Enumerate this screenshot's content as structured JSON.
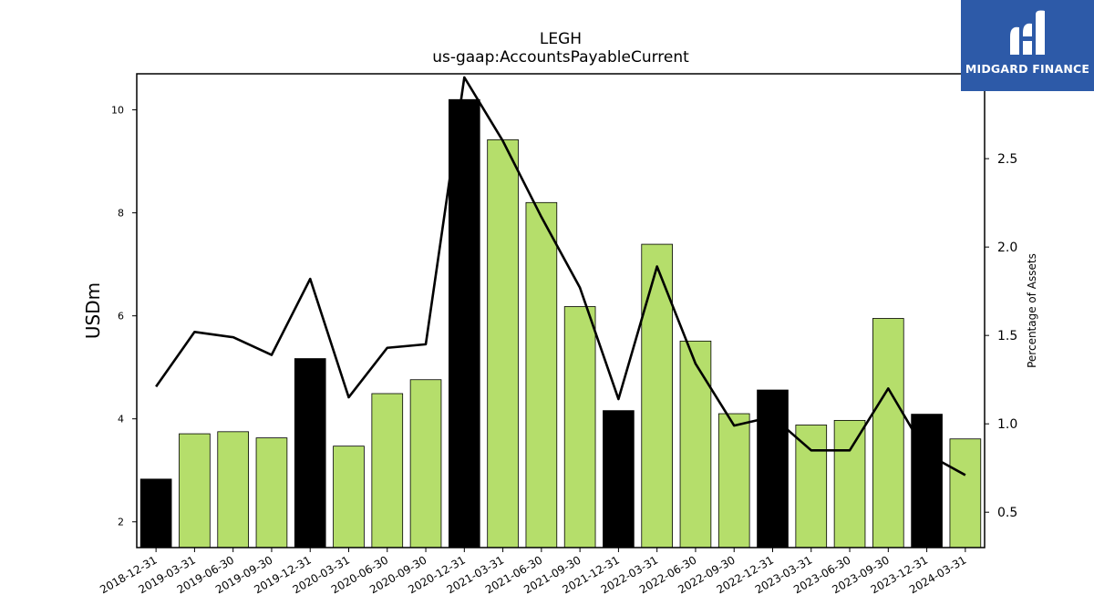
{
  "chart_data": {
    "type": "bar",
    "title": "LEGH",
    "subtitle": "us-gaap:AccountsPayableCurrent",
    "ylabel": "USDm",
    "y2label": "Percentage of Assets",
    "ylim": [
      1.5,
      10.7
    ],
    "y2lim": [
      0.3,
      2.98
    ],
    "yticks": [
      2,
      4,
      6,
      8,
      10
    ],
    "y2ticks": [
      0.5,
      1.0,
      1.5,
      2.0,
      2.5
    ],
    "y2tick_labels": [
      "0.5",
      "1.0",
      "1.5",
      "2.0",
      "2.5"
    ],
    "categories": [
      "2018-12-31",
      "2019-03-31",
      "2019-06-30",
      "2019-09-30",
      "2019-12-31",
      "2020-03-31",
      "2020-06-30",
      "2020-09-30",
      "2020-12-31",
      "2021-03-31",
      "2021-06-30",
      "2021-09-30",
      "2021-12-31",
      "2022-03-31",
      "2022-06-30",
      "2022-09-30",
      "2022-12-31",
      "2023-03-31",
      "2023-06-30",
      "2023-09-30",
      "2023-12-31",
      "2024-03-31"
    ],
    "series": [
      {
        "type": "bar",
        "values": [
          2.83,
          3.71,
          3.75,
          3.63,
          5.17,
          3.47,
          4.49,
          4.76,
          10.2,
          9.42,
          8.2,
          6.18,
          4.16,
          7.39,
          5.51,
          4.1,
          4.56,
          3.88,
          3.97,
          5.95,
          4.09,
          3.61
        ],
        "colors": [
          "#000000",
          "#b5de6b",
          "#b5de6b",
          "#b5de6b",
          "#000000",
          "#b5de6b",
          "#b5de6b",
          "#b5de6b",
          "#000000",
          "#b5de6b",
          "#b5de6b",
          "#b5de6b",
          "#000000",
          "#b5de6b",
          "#b5de6b",
          "#b5de6b",
          "#000000",
          "#b5de6b",
          "#b5de6b",
          "#b5de6b",
          "#000000",
          "#b5de6b"
        ]
      },
      {
        "type": "line",
        "axis": "right",
        "color": "#000000",
        "values": [
          1.21,
          1.52,
          1.49,
          1.39,
          1.82,
          1.15,
          1.43,
          1.45,
          2.96,
          2.6,
          2.17,
          1.77,
          1.14,
          1.89,
          1.34,
          0.99,
          1.04,
          0.85,
          0.85,
          1.2,
          0.83,
          0.71
        ]
      }
    ],
    "grid": false,
    "legend": "none"
  },
  "logo": {
    "text": "MIDGARD FINANCE",
    "background": "#2d5aa8"
  }
}
